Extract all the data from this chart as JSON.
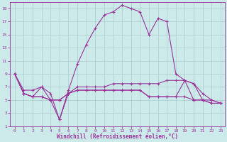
{
  "bg_color": "#cceaea",
  "grid_color": "#aacccc",
  "line_color": "#993399",
  "xlabel": "Windchill (Refroidissement éolien,°C)",
  "ylim": [
    1,
    20
  ],
  "xlim": [
    -0.5,
    23.5
  ],
  "yticks": [
    1,
    3,
    5,
    7,
    9,
    11,
    13,
    15,
    17,
    19
  ],
  "xticks": [
    0,
    1,
    2,
    3,
    4,
    5,
    6,
    7,
    8,
    9,
    10,
    11,
    12,
    13,
    14,
    15,
    16,
    17,
    18,
    19,
    20,
    21,
    22,
    23
  ],
  "line1_x": [
    0,
    1,
    2,
    3,
    4,
    5,
    6,
    7,
    8,
    9,
    10,
    11,
    12,
    13,
    14,
    15,
    16,
    17,
    18,
    19,
    20,
    21,
    22,
    23
  ],
  "line1_y": [
    9,
    6.5,
    6.5,
    7,
    6,
    2,
    6.5,
    10.5,
    13.5,
    16,
    18,
    18.5,
    19.5,
    19,
    18.5,
    15,
    17.5,
    17,
    9,
    8,
    7.5,
    6,
    5,
    4.5
  ],
  "line2_x": [
    0,
    1,
    2,
    3,
    4,
    5,
    6,
    7,
    8,
    9,
    10,
    11,
    12,
    13,
    14,
    15,
    16,
    17,
    18,
    19,
    20,
    21,
    22,
    23
  ],
  "line2_y": [
    9,
    6,
    5.5,
    7,
    5,
    2,
    6,
    7,
    7,
    7,
    7,
    7.5,
    7.5,
    7.5,
    7.5,
    7.5,
    7.5,
    8,
    8,
    8,
    7.5,
    5,
    5,
    4.5
  ],
  "line3_x": [
    0,
    1,
    2,
    3,
    4,
    5,
    6,
    7,
    8,
    9,
    10,
    11,
    12,
    13,
    14,
    15,
    16,
    17,
    18,
    19,
    20,
    21,
    22,
    23
  ],
  "line3_y": [
    9,
    6,
    5.5,
    5.5,
    5,
    5,
    6,
    6.5,
    6.5,
    6.5,
    6.5,
    6.5,
    6.5,
    6.5,
    6.5,
    5.5,
    5.5,
    5.5,
    5.5,
    8,
    5,
    5,
    4.5,
    4.5
  ],
  "line4_x": [
    0,
    1,
    2,
    3,
    4,
    5,
    6,
    7,
    8,
    9,
    10,
    11,
    12,
    13,
    14,
    15,
    16,
    17,
    18,
    19,
    20,
    21,
    22,
    23
  ],
  "line4_y": [
    9,
    6,
    5.5,
    5.5,
    5,
    5,
    6,
    6.5,
    6.5,
    6.5,
    6.5,
    6.5,
    6.5,
    6.5,
    6.5,
    5.5,
    5.5,
    5.5,
    5.5,
    5.5,
    5,
    5,
    4.5,
    4.5
  ]
}
